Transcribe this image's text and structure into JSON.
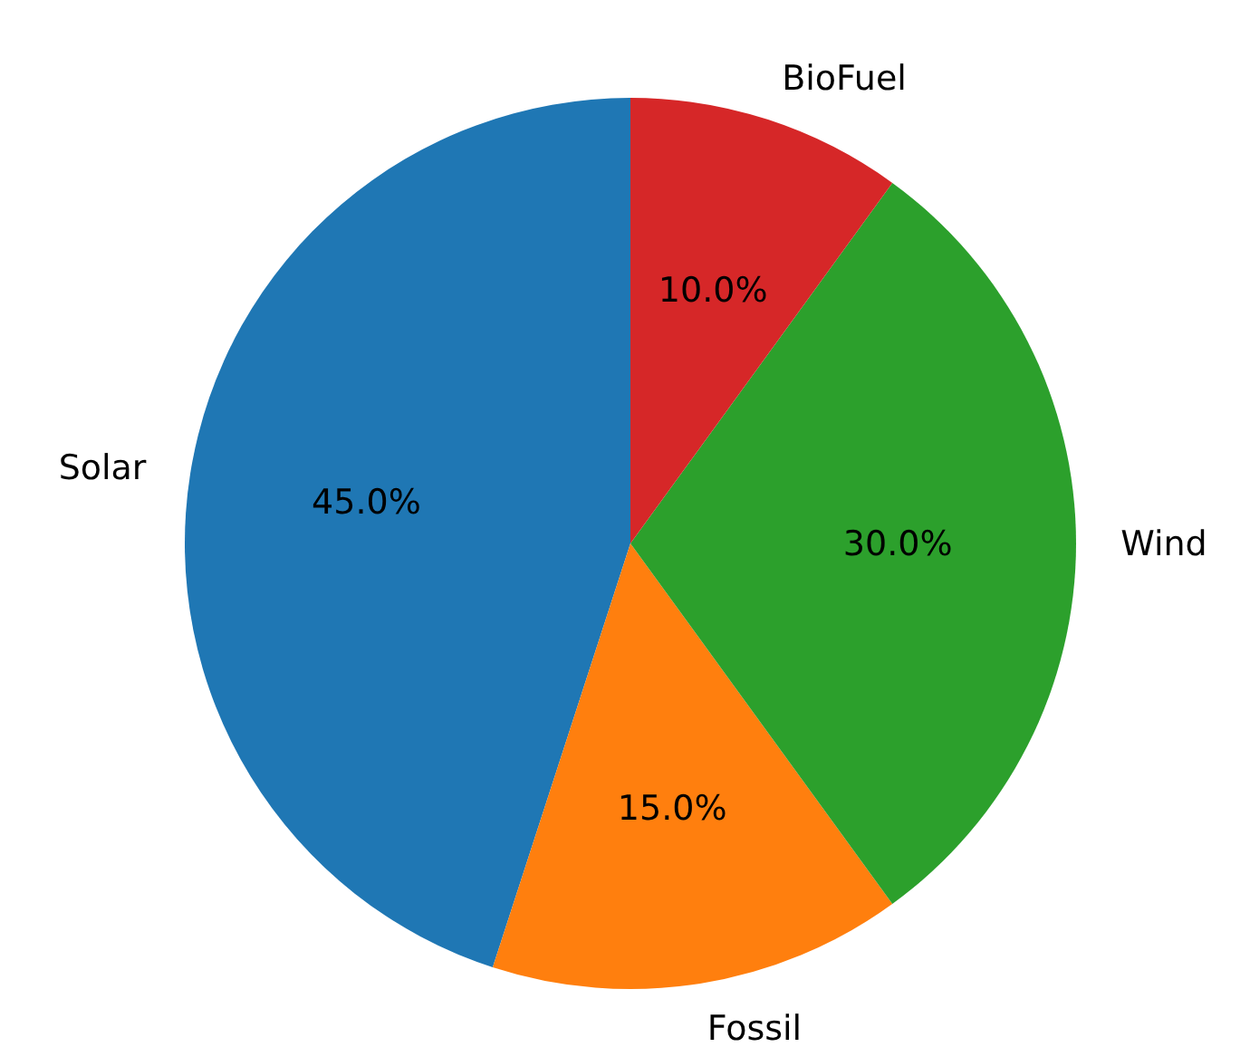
{
  "chart_data": {
    "type": "pie",
    "categories": [
      "Solar",
      "Fossil",
      "Wind",
      "BioFuel"
    ],
    "values": [
      45,
      15,
      30,
      10
    ],
    "colors": [
      "#1f77b4",
      "#ff7f0e",
      "#2ca02c",
      "#d62728"
    ],
    "value_labels": [
      "45.0%",
      "15.0%",
      "30.0%",
      "10.0%"
    ]
  }
}
